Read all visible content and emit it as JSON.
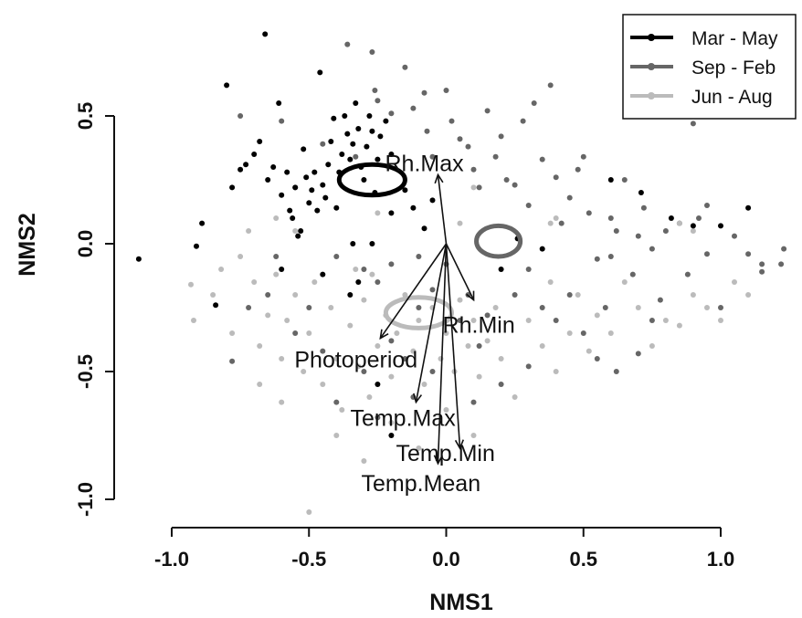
{
  "chart_data": {
    "type": "scatter",
    "xlabel": "NMS1",
    "ylabel": "NMS2",
    "xlim": [
      -1.2,
      1.25
    ],
    "ylim": [
      -1.1,
      0.9
    ],
    "xticks": [
      -1.0,
      -0.5,
      0.0,
      0.5,
      1.0
    ],
    "xtick_labels": [
      "-1.0",
      "-0.5",
      "0.0",
      "0.5",
      "1.0"
    ],
    "yticks": [
      -1.0,
      -0.5,
      0.0,
      0.5
    ],
    "ytick_labels": [
      "-1.0",
      "-0.5",
      "0.0",
      "0.5"
    ],
    "grid": false,
    "legend_position": "top-right",
    "series": [
      {
        "name": "Mar - May",
        "color": "#000000",
        "ellipse": {
          "cx": -0.27,
          "cy": 0.25,
          "rx": 0.12,
          "ry": 0.06
        },
        "points": [
          [
            -1.12,
            -0.06
          ],
          [
            -0.91,
            -0.01
          ],
          [
            -0.89,
            0.08
          ],
          [
            -0.84,
            -0.24
          ],
          [
            -0.8,
            0.62
          ],
          [
            -0.78,
            0.22
          ],
          [
            -0.75,
            0.29
          ],
          [
            -0.73,
            0.31
          ],
          [
            -0.7,
            0.35
          ],
          [
            -0.68,
            0.4
          ],
          [
            -0.66,
            0.82
          ],
          [
            -0.65,
            0.25
          ],
          [
            -0.63,
            0.3
          ],
          [
            -0.61,
            0.55
          ],
          [
            -0.6,
            0.19
          ],
          [
            -0.58,
            0.28
          ],
          [
            -0.57,
            0.13
          ],
          [
            -0.56,
            0.1
          ],
          [
            -0.55,
            0.22
          ],
          [
            -0.54,
            0.03
          ],
          [
            -0.53,
            0.05
          ],
          [
            -0.52,
            0.37
          ],
          [
            -0.51,
            0.26
          ],
          [
            -0.5,
            0.16
          ],
          [
            -0.49,
            0.21
          ],
          [
            -0.48,
            0.28
          ],
          [
            -0.47,
            0.13
          ],
          [
            -0.46,
            0.67
          ],
          [
            -0.45,
            0.23
          ],
          [
            -0.44,
            0.18
          ],
          [
            -0.43,
            0.31
          ],
          [
            -0.42,
            0.4
          ],
          [
            -0.41,
            0.49
          ],
          [
            -0.4,
            0.14
          ],
          [
            -0.39,
            0.28
          ],
          [
            -0.38,
            0.35
          ],
          [
            -0.37,
            0.5
          ],
          [
            -0.36,
            0.43
          ],
          [
            -0.35,
            0.33
          ],
          [
            -0.34,
            0.39
          ],
          [
            -0.33,
            0.55
          ],
          [
            -0.32,
            0.45
          ],
          [
            -0.31,
            0.3
          ],
          [
            -0.3,
            0.25
          ],
          [
            -0.29,
            0.38
          ],
          [
            -0.28,
            0.5
          ],
          [
            -0.27,
            0.44
          ],
          [
            -0.26,
            0.2
          ],
          [
            -0.25,
            0.33
          ],
          [
            -0.24,
            0.42
          ],
          [
            -0.22,
            0.48
          ],
          [
            -0.2,
            0.35
          ],
          [
            -0.6,
            -0.1
          ],
          [
            -0.45,
            -0.12
          ],
          [
            -0.34,
            0.0
          ],
          [
            -0.27,
            0.0
          ],
          [
            -0.2,
            0.12
          ],
          [
            -0.15,
            0.21
          ],
          [
            -0.12,
            0.14
          ],
          [
            -0.08,
            0.06
          ],
          [
            -0.05,
            0.17
          ],
          [
            -0.35,
            -0.2
          ],
          [
            -0.32,
            -0.15
          ],
          [
            -0.25,
            -0.55
          ],
          [
            -0.2,
            -0.75
          ],
          [
            0.2,
            -0.1
          ],
          [
            0.26,
            0.02
          ],
          [
            0.35,
            -0.02
          ],
          [
            0.6,
            0.25
          ],
          [
            0.82,
            0.1
          ],
          [
            0.9,
            0.07
          ],
          [
            1.0,
            0.07
          ],
          [
            1.1,
            0.14
          ],
          [
            0.71,
            0.2
          ]
        ]
      },
      {
        "name": "Sep - Feb",
        "color": "#666666",
        "ellipse": {
          "cx": 0.19,
          "cy": 0.01,
          "rx": 0.08,
          "ry": 0.06
        },
        "points": [
          [
            -0.75,
            0.5
          ],
          [
            -0.6,
            0.48
          ],
          [
            -0.55,
            0.22
          ],
          [
            -0.45,
            0.39
          ],
          [
            -0.36,
            0.78
          ],
          [
            -0.33,
            0.34
          ],
          [
            -0.27,
            0.75
          ],
          [
            -0.26,
            0.6
          ],
          [
            -0.25,
            0.56
          ],
          [
            -0.2,
            0.51
          ],
          [
            -0.15,
            0.69
          ],
          [
            -0.12,
            0.53
          ],
          [
            -0.08,
            0.59
          ],
          [
            -0.07,
            0.44
          ],
          [
            -0.05,
            0.34
          ],
          [
            0.0,
            0.6
          ],
          [
            0.02,
            0.48
          ],
          [
            0.05,
            0.41
          ],
          [
            0.08,
            0.38
          ],
          [
            0.1,
            0.29
          ],
          [
            0.12,
            0.22
          ],
          [
            0.15,
            0.52
          ],
          [
            0.18,
            0.34
          ],
          [
            0.2,
            0.42
          ],
          [
            0.22,
            0.25
          ],
          [
            0.25,
            0.23
          ],
          [
            0.28,
            0.48
          ],
          [
            0.3,
            0.15
          ],
          [
            0.35,
            0.33
          ],
          [
            0.38,
            0.62
          ],
          [
            0.4,
            0.26
          ],
          [
            0.42,
            0.08
          ],
          [
            0.45,
            0.18
          ],
          [
            0.48,
            0.29
          ],
          [
            0.5,
            0.34
          ],
          [
            0.52,
            0.12
          ],
          [
            0.55,
            -0.06
          ],
          [
            0.58,
            -0.25
          ],
          [
            0.6,
            0.1
          ],
          [
            0.62,
            0.05
          ],
          [
            0.65,
            0.25
          ],
          [
            0.68,
            -0.12
          ],
          [
            0.7,
            0.03
          ],
          [
            0.72,
            0.14
          ],
          [
            0.75,
            -0.02
          ],
          [
            0.78,
            -0.22
          ],
          [
            0.8,
            0.05
          ],
          [
            0.85,
            0.08
          ],
          [
            0.88,
            -0.12
          ],
          [
            0.92,
            0.1
          ],
          [
            0.95,
            -0.04
          ],
          [
            1.0,
            -0.25
          ],
          [
            1.05,
            0.03
          ],
          [
            1.1,
            -0.04
          ],
          [
            1.15,
            -0.08
          ],
          [
            1.22,
            -0.08
          ],
          [
            1.23,
            -0.02
          ],
          [
            0.9,
            0.47
          ],
          [
            0.32,
            0.55
          ],
          [
            0.45,
            -0.2
          ],
          [
            0.5,
            -0.35
          ],
          [
            0.55,
            -0.45
          ],
          [
            0.62,
            -0.5
          ],
          [
            0.7,
            -0.43
          ],
          [
            0.35,
            -0.25
          ],
          [
            0.3,
            -0.1
          ],
          [
            0.25,
            -0.2
          ],
          [
            0.4,
            -0.3
          ],
          [
            0.15,
            -0.28
          ],
          [
            0.08,
            -0.2
          ],
          [
            -0.05,
            -0.18
          ],
          [
            -0.1,
            -0.25
          ],
          [
            -0.15,
            -0.45
          ],
          [
            -0.2,
            -0.38
          ],
          [
            -0.3,
            -0.5
          ],
          [
            -0.45,
            -0.42
          ],
          [
            -0.55,
            -0.35
          ],
          [
            -0.65,
            -0.2
          ],
          [
            -0.78,
            -0.46
          ],
          [
            -0.72,
            -0.25
          ],
          [
            -0.62,
            -0.05
          ],
          [
            -0.5,
            -0.25
          ],
          [
            -0.4,
            -0.05
          ],
          [
            -0.25,
            -0.15
          ],
          [
            -0.3,
            -0.1
          ],
          [
            -0.2,
            -0.08
          ],
          [
            -0.1,
            -0.05
          ],
          [
            0.0,
            -0.08
          ],
          [
            0.05,
            -0.3
          ],
          [
            0.12,
            -0.4
          ],
          [
            0.2,
            -0.55
          ],
          [
            0.1,
            -0.62
          ],
          [
            -0.05,
            -0.5
          ],
          [
            -0.12,
            -0.6
          ],
          [
            -0.25,
            -0.68
          ],
          [
            -0.4,
            -0.62
          ],
          [
            0.3,
            -0.48
          ],
          [
            0.6,
            -0.05
          ],
          [
            0.75,
            -0.3
          ],
          [
            0.95,
            0.15
          ],
          [
            1.15,
            -0.11
          ]
        ]
      },
      {
        "name": "Jun - Aug",
        "color": "#bbbbbb",
        "ellipse": {
          "cx": -0.1,
          "cy": -0.27,
          "rx": 0.12,
          "ry": 0.06
        },
        "points": [
          [
            -0.93,
            -0.16
          ],
          [
            -0.92,
            -0.3
          ],
          [
            -0.85,
            -0.2
          ],
          [
            -0.82,
            -0.1
          ],
          [
            -0.78,
            -0.35
          ],
          [
            -0.75,
            -0.05
          ],
          [
            -0.7,
            -0.15
          ],
          [
            -0.68,
            -0.4
          ],
          [
            -0.65,
            -0.28
          ],
          [
            -0.62,
            -0.12
          ],
          [
            -0.6,
            -0.45
          ],
          [
            -0.58,
            -0.3
          ],
          [
            -0.55,
            -0.2
          ],
          [
            -0.52,
            -0.5
          ],
          [
            -0.5,
            -0.35
          ],
          [
            -0.48,
            -0.15
          ],
          [
            -0.45,
            -0.55
          ],
          [
            -0.42,
            -0.25
          ],
          [
            -0.4,
            -0.45
          ],
          [
            -0.38,
            -0.65
          ],
          [
            -0.35,
            -0.32
          ],
          [
            -0.32,
            -0.48
          ],
          [
            -0.3,
            -0.22
          ],
          [
            -0.28,
            -0.6
          ],
          [
            -0.25,
            -0.4
          ],
          [
            -0.22,
            -0.28
          ],
          [
            -0.2,
            -0.52
          ],
          [
            -0.18,
            -0.35
          ],
          [
            -0.15,
            -0.2
          ],
          [
            -0.12,
            -0.42
          ],
          [
            -0.1,
            -0.3
          ],
          [
            -0.08,
            -0.55
          ],
          [
            -0.05,
            -0.25
          ],
          [
            -0.02,
            -0.45
          ],
          [
            0.0,
            -0.35
          ],
          [
            0.03,
            -0.5
          ],
          [
            0.05,
            -0.22
          ],
          [
            0.08,
            -0.4
          ],
          [
            0.1,
            -0.3
          ],
          [
            0.12,
            -0.52
          ],
          [
            0.15,
            -0.38
          ],
          [
            0.18,
            -0.25
          ],
          [
            0.2,
            -0.45
          ],
          [
            0.25,
            -0.6
          ],
          [
            0.3,
            -0.3
          ],
          [
            0.35,
            -0.4
          ],
          [
            0.38,
            -0.15
          ],
          [
            0.4,
            -0.5
          ],
          [
            0.45,
            -0.35
          ],
          [
            0.48,
            -0.2
          ],
          [
            0.52,
            -0.42
          ],
          [
            0.55,
            -0.28
          ],
          [
            0.6,
            -0.35
          ],
          [
            0.65,
            -0.15
          ],
          [
            0.7,
            -0.25
          ],
          [
            0.75,
            -0.4
          ],
          [
            0.8,
            -0.3
          ],
          [
            0.85,
            -0.32
          ],
          [
            0.9,
            -0.2
          ],
          [
            0.95,
            -0.25
          ],
          [
            1.0,
            -0.3
          ],
          [
            1.05,
            -0.15
          ],
          [
            1.1,
            -0.2
          ],
          [
            0.85,
            0.08
          ],
          [
            0.9,
            0.05
          ],
          [
            0.4,
            0.1
          ],
          [
            0.38,
            0.08
          ],
          [
            0.1,
            0.22
          ],
          [
            0.05,
            0.08
          ],
          [
            -0.55,
            0.05
          ],
          [
            -0.62,
            0.1
          ],
          [
            -0.72,
            0.05
          ],
          [
            -0.5,
            -1.05
          ],
          [
            -0.4,
            -0.75
          ],
          [
            -0.3,
            -0.85
          ],
          [
            -0.2,
            -0.7
          ],
          [
            -0.1,
            -0.8
          ],
          [
            0.0,
            -0.65
          ],
          [
            0.1,
            -0.75
          ],
          [
            -0.6,
            -0.62
          ],
          [
            -0.68,
            -0.55
          ],
          [
            -0.25,
            0.12
          ],
          [
            -0.33,
            -0.1
          ],
          [
            -0.27,
            -0.12
          ]
        ]
      }
    ],
    "vectors": {
      "origin": [
        0.0,
        0.0
      ],
      "items": [
        {
          "label": "Rh.Max",
          "x": -0.03,
          "y": 0.27
        },
        {
          "label": "Rh.Min",
          "x": 0.1,
          "y": -0.22
        },
        {
          "label": "Photoperiod",
          "x": -0.24,
          "y": -0.37
        },
        {
          "label": "Temp.Max",
          "x": -0.11,
          "y": -0.62
        },
        {
          "label": "Temp.Min",
          "x": 0.05,
          "y": -0.8
        },
        {
          "label": "Temp.Mean",
          "x": -0.03,
          "y": -0.86
        }
      ]
    }
  }
}
